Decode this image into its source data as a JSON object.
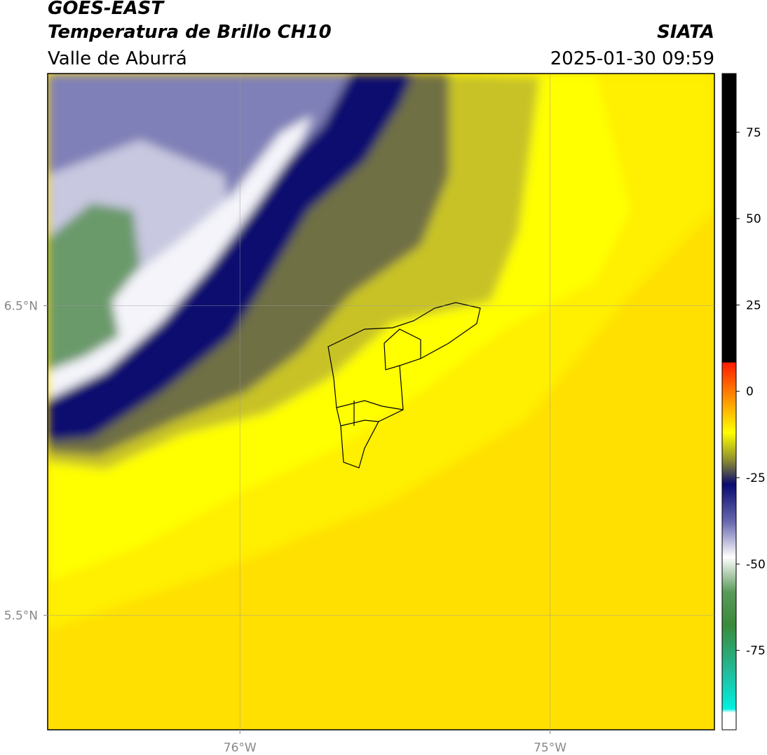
{
  "header": {
    "satellite": "GOES-EAST",
    "title": "Temperatura de Brillo CH10",
    "source": "SIATA",
    "region": "Valle de Aburrá",
    "timestamp": "2025-01-30 09:59"
  },
  "map": {
    "xlim": [
      -76.62,
      -74.47
    ],
    "ylim": [
      5.13,
      7.25
    ],
    "xticks": [
      {
        "value": -76,
        "label": "76°W"
      },
      {
        "value": -75,
        "label": "75°W"
      }
    ],
    "yticks": [
      {
        "value": 6.5,
        "label": "6.5°N"
      },
      {
        "value": 5.5,
        "label": "5.5°N"
      }
    ],
    "grid": true
  },
  "colorbar": {
    "lim": [
      -98,
      92
    ],
    "ticks": [
      75,
      50,
      25,
      0,
      -25,
      -50,
      -75
    ]
  }
}
